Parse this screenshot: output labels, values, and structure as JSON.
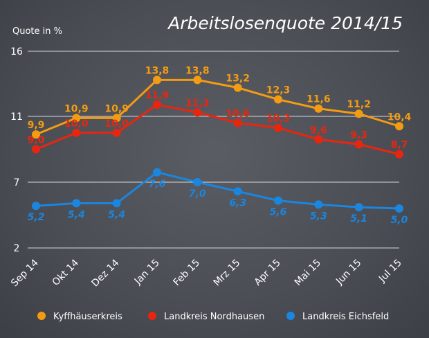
{
  "chart_data": {
    "type": "line",
    "title": "Arbeitslosenquote 2014/15",
    "ylabel": "Quote in %",
    "yticks": [
      16,
      11,
      7,
      2
    ],
    "ylim": [
      2,
      16
    ],
    "grid": true,
    "legend_position": "bottom",
    "categories": [
      "Sep 14",
      "Okt 14",
      "Dez 14",
      "Jan 15",
      "Feb 15",
      "Mrz 15",
      "Apr 15",
      "Mai 15",
      "Jun 15",
      "Jul 15"
    ],
    "series": [
      {
        "name": "Kyffhäuserkreis",
        "color": "#f39c12",
        "values": [
          9.9,
          10.9,
          10.9,
          13.8,
          13.8,
          13.2,
          12.3,
          11.6,
          11.2,
          10.4
        ],
        "labels": [
          "9,9",
          "10,9",
          "10,9",
          "13,8",
          "13,8",
          "13,2",
          "12,3",
          "11,6",
          "11,2",
          "10,4"
        ]
      },
      {
        "name": "Landkreis Nordhausen",
        "color": "#e8260f",
        "values": [
          9.0,
          10.0,
          10.0,
          11.9,
          11.3,
          10.6,
          10.3,
          9.6,
          9.3,
          8.7
        ],
        "labels": [
          "9,0",
          "10,0",
          "10,0",
          "11,9",
          "11,3",
          "10,6",
          "10,3",
          "9,6",
          "9,3",
          "8,7"
        ]
      },
      {
        "name": "Landkreis Eichsfeld",
        "color": "#1a86e0",
        "values": [
          5.2,
          5.4,
          5.4,
          7.6,
          7.0,
          6.3,
          5.6,
          5.3,
          5.1,
          5.0
        ],
        "labels": [
          "5,2",
          "5,4",
          "5,4",
          "7,6",
          "7,0",
          "6,3",
          "5,6",
          "5,3",
          "5,1",
          "5,0"
        ]
      }
    ]
  }
}
